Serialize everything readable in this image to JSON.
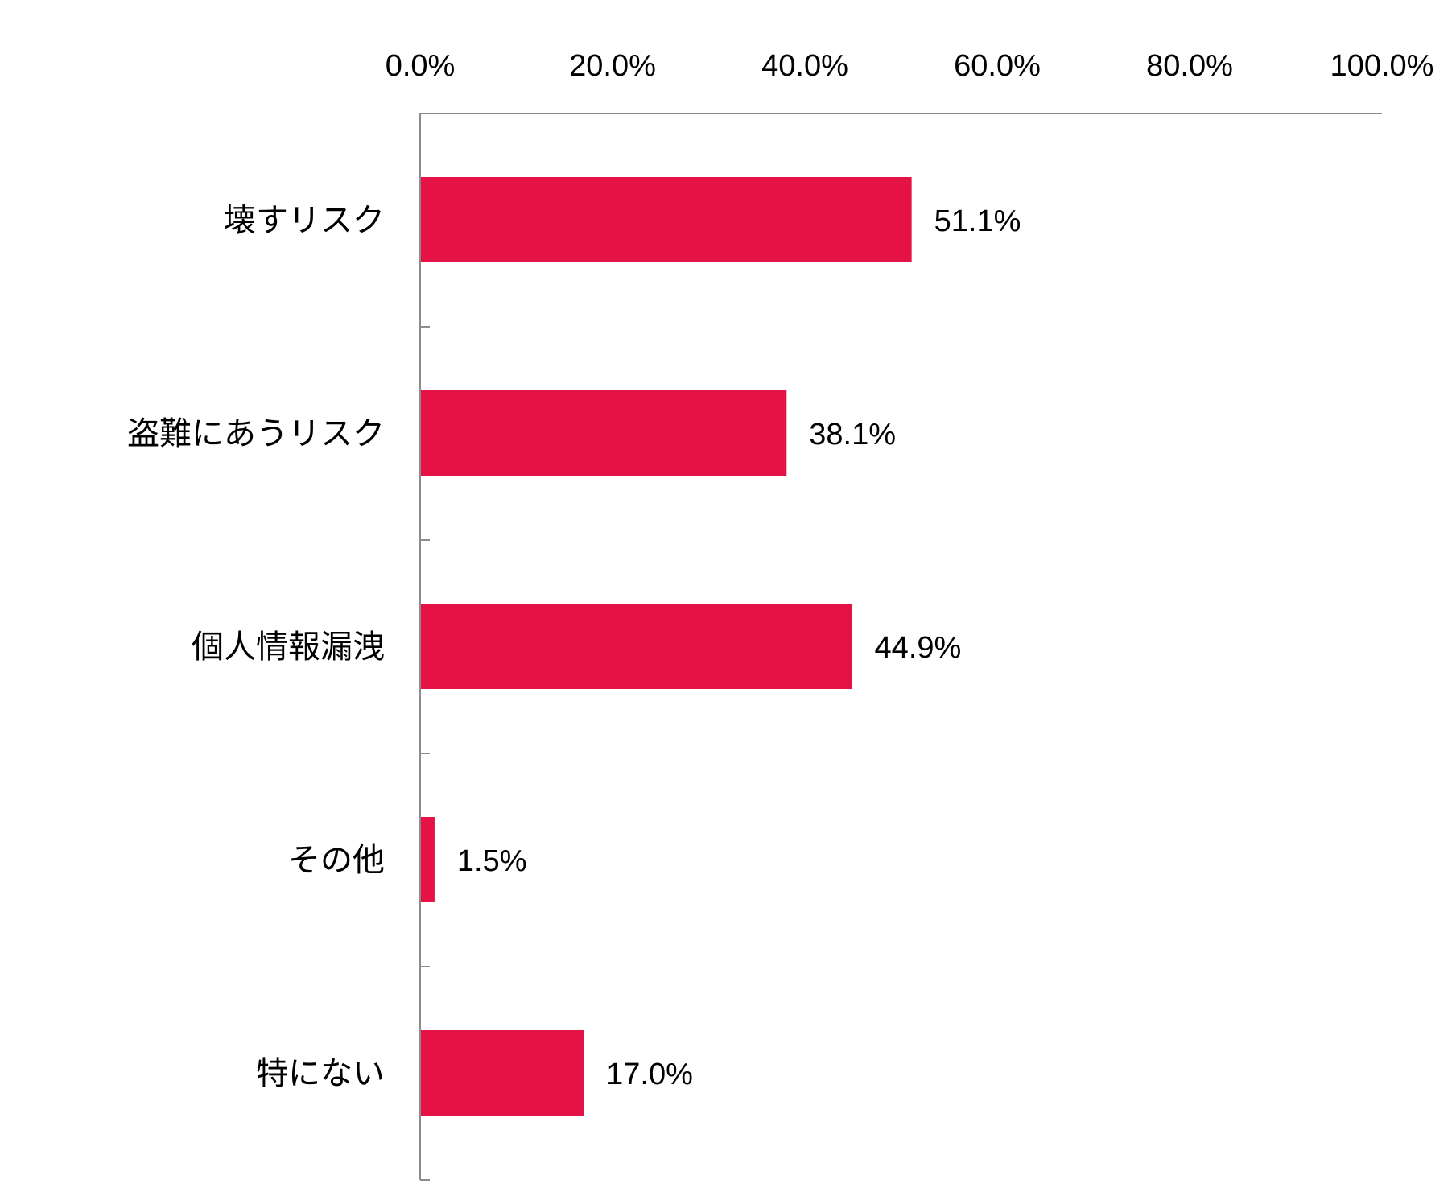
{
  "chart_data": {
    "type": "bar",
    "orientation": "horizontal",
    "categories": [
      "壊すリスク",
      "盗難にあうリスク",
      "個人情報漏洩",
      "その他",
      "特にない"
    ],
    "values": [
      51.1,
      38.1,
      44.9,
      1.5,
      17.0
    ],
    "value_labels": [
      "51.1%",
      "38.1%",
      "44.9%",
      "1.5%",
      "17.0%"
    ],
    "xlim": [
      0,
      100
    ],
    "x_ticks": [
      0,
      20,
      40,
      60,
      80,
      100
    ],
    "x_tick_labels": [
      "0.0%",
      "20.0%",
      "40.0%",
      "60.0%",
      "80.0%",
      "100.0%"
    ],
    "x_axis_position": "top",
    "grid": false,
    "legend": "none",
    "bar_color": "#e51245"
  }
}
